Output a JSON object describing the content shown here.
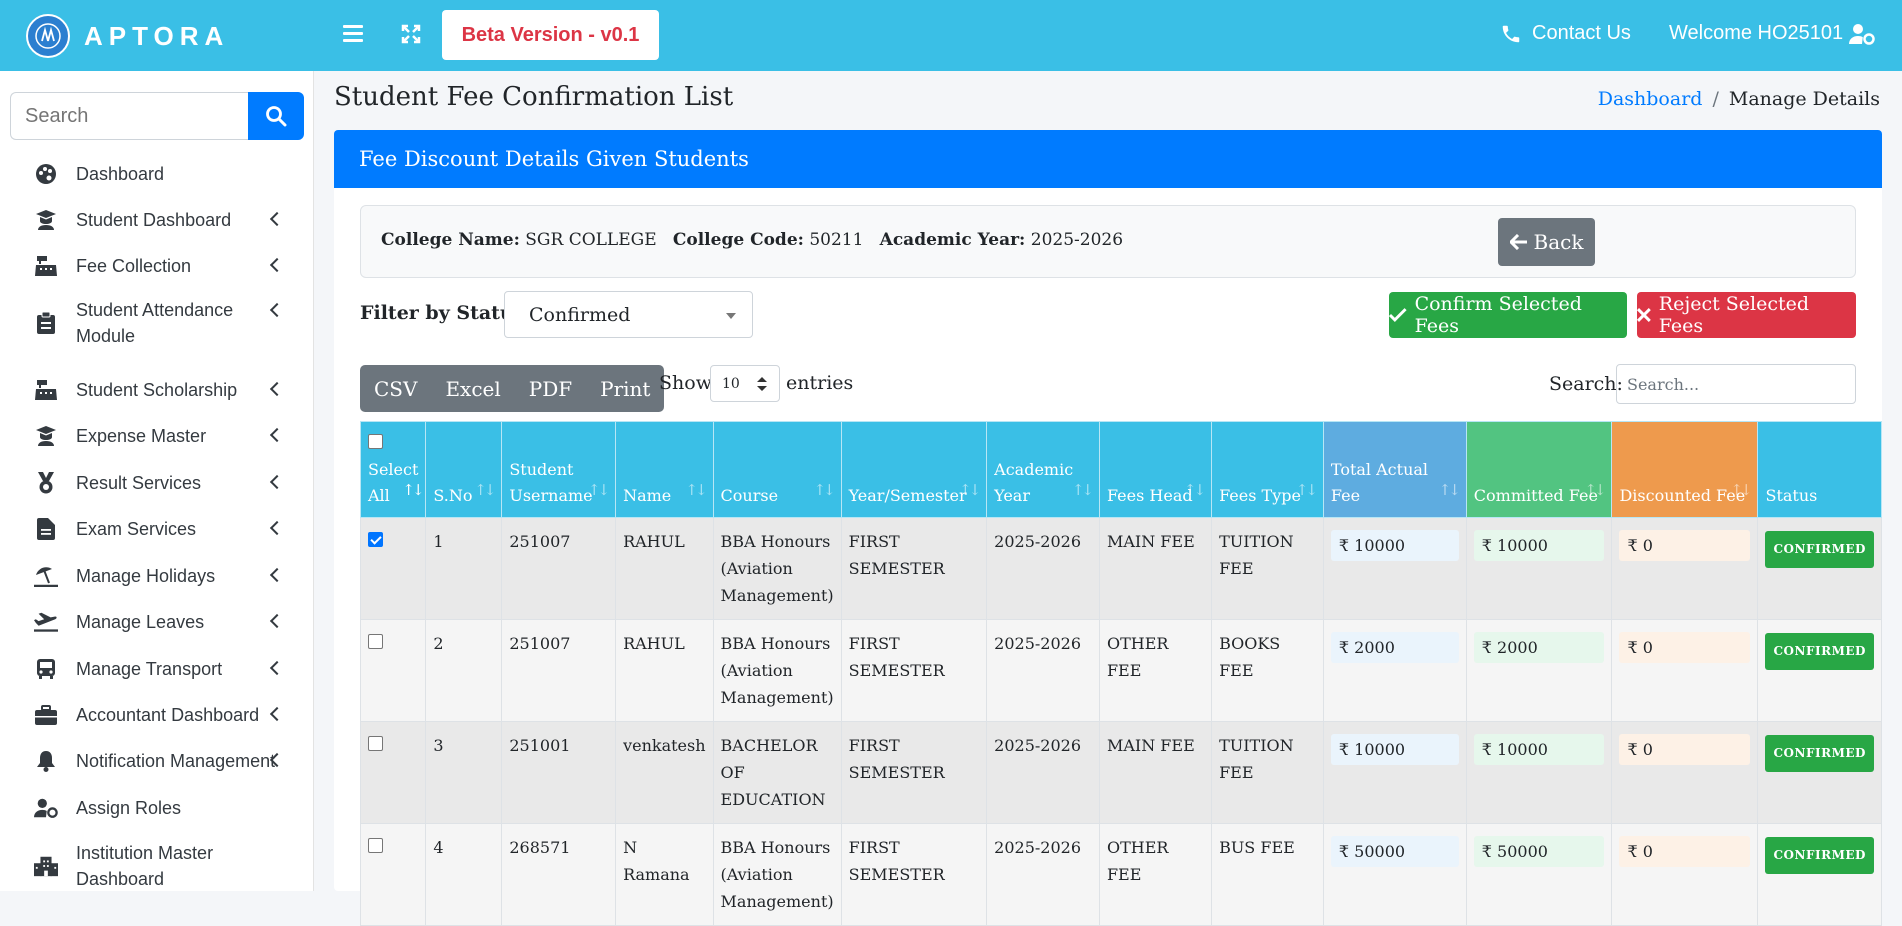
{
  "topbar": {
    "logo_text": "APTORA",
    "beta_label": "Beta Version - v0.1",
    "contact_label": "Contact Us",
    "welcome_label": "Welcome HO25101"
  },
  "sidebar": {
    "search_placeholder": "Search",
    "items": [
      {
        "label": "Dashboard",
        "icon": "palette-icon",
        "has_submenu": false
      },
      {
        "label": "Student Dashboard",
        "icon": "graduate-icon",
        "has_submenu": true
      },
      {
        "label": "Fee Collection",
        "icon": "cash-register-icon",
        "has_submenu": true
      },
      {
        "label": "Student Attendance Module",
        "icon": "clipboard-icon",
        "has_submenu": true
      },
      {
        "label": "Student Scholarship",
        "icon": "cash-register-icon",
        "has_submenu": true
      },
      {
        "label": "Expense Master",
        "icon": "graduate-icon",
        "has_submenu": true
      },
      {
        "label": "Result Services",
        "icon": "medal-icon",
        "has_submenu": true
      },
      {
        "label": "Exam Services",
        "icon": "file-icon",
        "has_submenu": true
      },
      {
        "label": "Manage Holidays",
        "icon": "umbrella-beach-icon",
        "has_submenu": true
      },
      {
        "label": "Manage Leaves",
        "icon": "plane-departure-icon",
        "has_submenu": true
      },
      {
        "label": "Manage Transport",
        "icon": "bus-icon",
        "has_submenu": true
      },
      {
        "label": "Accountant Dashboard",
        "icon": "briefcase-icon",
        "has_submenu": true
      },
      {
        "label": "Notification Management",
        "icon": "bell-icon",
        "has_submenu": true
      },
      {
        "label": "Assign Roles",
        "icon": "user-cog-icon",
        "has_submenu": false
      },
      {
        "label": "Institution Master Dashboard",
        "icon": "building-icon",
        "has_submenu": false
      }
    ]
  },
  "page": {
    "title": "Student Fee Confirmation List",
    "breadcrumb_link": "Dashboard",
    "breadcrumb_sep": "/",
    "breadcrumb_current": "Manage Details"
  },
  "card": {
    "header": "Fee Discount Details Given Students",
    "college_name_label": "College Name:",
    "college_name": "SGR COLLEGE",
    "college_code_label": "College Code:",
    "college_code": "50211",
    "academic_year_label": "Academic Year:",
    "academic_year": "2025-2026",
    "back_label": "Back",
    "filter_label": "Filter by Status:",
    "filter_value": "Confirmed",
    "confirm_label": "Confirm Selected Fees",
    "reject_label": "Reject Selected Fees",
    "export_buttons": [
      "CSV",
      "Excel",
      "PDF",
      "Print"
    ],
    "show_label": "Show",
    "show_value": "10",
    "entries_label": "entries",
    "search_label": "Search:",
    "search_placeholder": "Search..."
  },
  "table": {
    "headers": {
      "select_all": "Select All",
      "sno": "S.No",
      "username": "Student Username",
      "name": "Name",
      "course": "Course",
      "year_sem": "Year/Semester",
      "academic_year": "Academic Year",
      "fees_head": "Fees Head",
      "fees_type": "Fees Type",
      "total_actual_fee": "Total Actual Fee",
      "committed_fee": "Committed Fee",
      "discounted_fee": "Discounted Fee",
      "status": "Status"
    },
    "rows": [
      {
        "checked": true,
        "sno": "1",
        "username": "251007",
        "name": "RAHUL",
        "course": "BBA Honours (Aviation Management)",
        "year_sem": "FIRST SEMESTER",
        "academic_year": "2025-2026",
        "fees_head": "MAIN FEE",
        "fees_type": "TUITION FEE",
        "actual": "₹ 10000",
        "committed": "₹ 10000",
        "discounted": "₹ 0",
        "status": "CONFIRMED"
      },
      {
        "checked": false,
        "sno": "2",
        "username": "251007",
        "name": "RAHUL",
        "course": "BBA Honours (Aviation Management)",
        "year_sem": "FIRST SEMESTER",
        "academic_year": "2025-2026",
        "fees_head": "OTHER FEE",
        "fees_type": "BOOKS FEE",
        "actual": "₹ 2000",
        "committed": "₹ 2000",
        "discounted": "₹ 0",
        "status": "CONFIRMED"
      },
      {
        "checked": false,
        "sno": "3",
        "username": "251001",
        "name": "venkatesh",
        "course": "BACHELOR OF EDUCATION",
        "year_sem": "FIRST SEMESTER",
        "academic_year": "2025-2026",
        "fees_head": "MAIN FEE",
        "fees_type": "TUITION FEE",
        "actual": "₹ 10000",
        "committed": "₹ 10000",
        "discounted": "₹ 0",
        "status": "CONFIRMED"
      },
      {
        "checked": false,
        "sno": "4",
        "username": "268571",
        "name": "N Ramana",
        "course": "BBA Honours (Aviation Management)",
        "year_sem": "FIRST SEMESTER",
        "academic_year": "2025-2026",
        "fees_head": "OTHER FEE",
        "fees_type": "BUS FEE",
        "actual": "₹ 50000",
        "committed": "₹ 50000",
        "discounted": "₹ 0",
        "status": "CONFIRMED"
      }
    ]
  },
  "colors": {
    "topbar": "#3abfe6",
    "primary": "#007bff",
    "success": "#28a745",
    "danger": "#dc3545",
    "secondary": "#6c757d"
  }
}
